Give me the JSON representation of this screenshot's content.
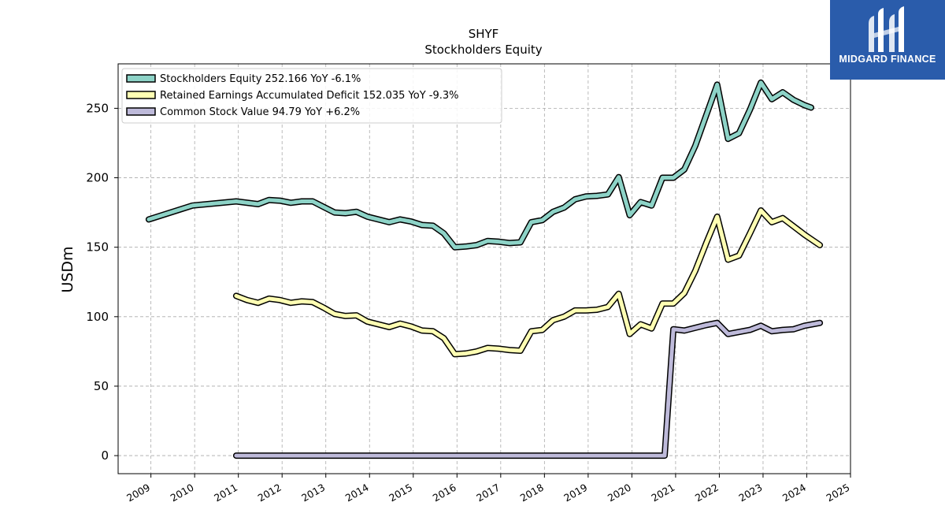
{
  "logo": {
    "text": "MIDGARD FINANCE",
    "background": "#2a5cab"
  },
  "chart_data": {
    "type": "line",
    "title": "SHYF",
    "subtitle": "Stockholders  Equity",
    "ylabel": "USDm",
    "xlabel": "",
    "ylim": [
      -13,
      282
    ],
    "xlim": [
      2008.25,
      2025.0
    ],
    "y_ticks": [
      0,
      50,
      100,
      150,
      200,
      250
    ],
    "x_ticks": [
      2009,
      2010,
      2011,
      2012,
      2013,
      2014,
      2015,
      2016,
      2017,
      2018,
      2019,
      2020,
      2021,
      2022,
      2023,
      2024,
      2025
    ],
    "grid": true,
    "legend_position": "top-left",
    "series": [
      {
        "name": "Stockholders Equity  252.166 YoY -6.1%",
        "color": "#8dd3c7",
        "points": [
          [
            2008.95,
            170
          ],
          [
            2009.95,
            180
          ],
          [
            2010.95,
            183
          ],
          [
            2011.45,
            181
          ],
          [
            2011.7,
            184
          ],
          [
            2011.95,
            183.5
          ],
          [
            2012.2,
            182
          ],
          [
            2012.45,
            183
          ],
          [
            2012.7,
            183
          ],
          [
            2012.95,
            179
          ],
          [
            2013.2,
            175
          ],
          [
            2013.45,
            174.5
          ],
          [
            2013.7,
            175.5
          ],
          [
            2013.95,
            172
          ],
          [
            2014.2,
            170
          ],
          [
            2014.45,
            168
          ],
          [
            2014.7,
            170
          ],
          [
            2014.95,
            168.5
          ],
          [
            2015.2,
            166
          ],
          [
            2015.45,
            165.5
          ],
          [
            2015.7,
            160
          ],
          [
            2015.95,
            150
          ],
          [
            2016.2,
            150.5
          ],
          [
            2016.45,
            151.5
          ],
          [
            2016.7,
            154.5
          ],
          [
            2016.95,
            154
          ],
          [
            2017.2,
            153
          ],
          [
            2017.45,
            153.5
          ],
          [
            2017.7,
            168
          ],
          [
            2017.95,
            169.5
          ],
          [
            2018.2,
            175.5
          ],
          [
            2018.45,
            178.5
          ],
          [
            2018.7,
            184.5
          ],
          [
            2018.95,
            186.5
          ],
          [
            2019.2,
            187
          ],
          [
            2019.45,
            188
          ],
          [
            2019.7,
            200.5
          ],
          [
            2019.95,
            173
          ],
          [
            2020.2,
            182.5
          ],
          [
            2020.45,
            180
          ],
          [
            2020.7,
            200
          ],
          [
            2020.95,
            200
          ],
          [
            2021.2,
            206
          ],
          [
            2021.45,
            223
          ],
          [
            2021.7,
            245
          ],
          [
            2021.95,
            267
          ],
          [
            2022.2,
            228
          ],
          [
            2022.45,
            232
          ],
          [
            2022.7,
            249
          ],
          [
            2022.95,
            268.5
          ],
          [
            2023.2,
            256.5
          ],
          [
            2023.45,
            261.5
          ],
          [
            2023.7,
            256
          ],
          [
            2023.95,
            252.2
          ],
          [
            2024.1,
            250.5
          ]
        ]
      },
      {
        "name": "Retained Earnings Accumulated Deficit  152.035 YoY -9.3%",
        "color": "#ffffb3",
        "points": [
          [
            2010.95,
            115
          ],
          [
            2011.2,
            112
          ],
          [
            2011.45,
            110
          ],
          [
            2011.7,
            113
          ],
          [
            2011.95,
            112
          ],
          [
            2012.2,
            110
          ],
          [
            2012.45,
            111
          ],
          [
            2012.7,
            110.5
          ],
          [
            2012.95,
            106.5
          ],
          [
            2013.2,
            102
          ],
          [
            2013.45,
            100.5
          ],
          [
            2013.7,
            101
          ],
          [
            2013.95,
            96.5
          ],
          [
            2014.2,
            94.5
          ],
          [
            2014.45,
            92.5
          ],
          [
            2014.7,
            95
          ],
          [
            2014.95,
            93
          ],
          [
            2015.2,
            90
          ],
          [
            2015.45,
            89.5
          ],
          [
            2015.7,
            84.5
          ],
          [
            2015.95,
            73
          ],
          [
            2016.2,
            73.5
          ],
          [
            2016.45,
            75
          ],
          [
            2016.7,
            77.5
          ],
          [
            2016.95,
            77
          ],
          [
            2017.2,
            76
          ],
          [
            2017.45,
            75.5
          ],
          [
            2017.7,
            89.5
          ],
          [
            2017.95,
            90.5
          ],
          [
            2018.2,
            97.5
          ],
          [
            2018.45,
            100
          ],
          [
            2018.7,
            104.5
          ],
          [
            2018.95,
            104.5
          ],
          [
            2019.2,
            105
          ],
          [
            2019.45,
            107
          ],
          [
            2019.7,
            116.5
          ],
          [
            2019.95,
            87.5
          ],
          [
            2020.2,
            94.5
          ],
          [
            2020.45,
            91.5
          ],
          [
            2020.7,
            109.5
          ],
          [
            2020.95,
            109.5
          ],
          [
            2021.2,
            117
          ],
          [
            2021.45,
            133
          ],
          [
            2021.7,
            153
          ],
          [
            2021.95,
            172
          ],
          [
            2022.2,
            141
          ],
          [
            2022.45,
            144
          ],
          [
            2022.7,
            160
          ],
          [
            2022.95,
            176.5
          ],
          [
            2023.2,
            168
          ],
          [
            2023.45,
            171
          ],
          [
            2023.7,
            165
          ],
          [
            2023.95,
            159
          ],
          [
            2024.3,
            151.5
          ]
        ]
      },
      {
        "name": "Common Stock Value  94.79 YoY +6.2%",
        "color": "#bebada",
        "points": [
          [
            2010.95,
            0
          ],
          [
            2020.75,
            0
          ],
          [
            2020.95,
            91
          ],
          [
            2021.2,
            90
          ],
          [
            2021.45,
            92
          ],
          [
            2021.7,
            94
          ],
          [
            2021.95,
            95.5
          ],
          [
            2022.2,
            87.5
          ],
          [
            2022.45,
            89
          ],
          [
            2022.7,
            90.5
          ],
          [
            2022.95,
            93.5
          ],
          [
            2023.2,
            89.5
          ],
          [
            2023.45,
            90.5
          ],
          [
            2023.7,
            91
          ],
          [
            2023.95,
            93.5
          ],
          [
            2024.3,
            95.5
          ]
        ]
      }
    ]
  }
}
